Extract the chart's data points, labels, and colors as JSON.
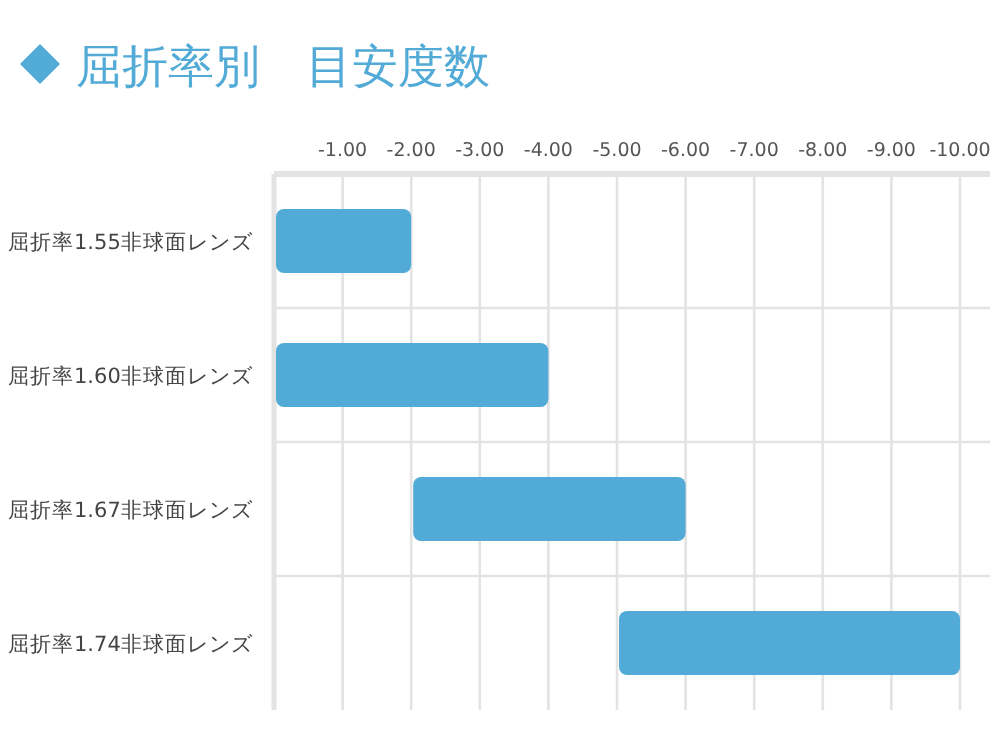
{
  "chart_data": {
    "type": "bar",
    "orientation": "horizontal",
    "title": "屈折率別　目安度数",
    "categories": [
      "屈折率1.55非球面レンズ",
      "屈折率1.60非球面レンズ",
      "屈折率1.67非球面レンズ",
      "屈折率1.74非球面レンズ"
    ],
    "base": [
      0,
      0,
      -2,
      -5
    ],
    "values": [
      -2,
      -4,
      -4,
      -5
    ],
    "color": "#52aad6",
    "xlim": [
      0,
      -10
    ],
    "xticks": [
      {
        "value": -1,
        "label": "-1.00"
      },
      {
        "value": -2,
        "label": "-2.00"
      },
      {
        "value": -3,
        "label": "-3.00"
      },
      {
        "value": -4,
        "label": "-4.00"
      },
      {
        "value": -5,
        "label": "-5.00"
      },
      {
        "value": -6,
        "label": "-6.00"
      },
      {
        "value": -7,
        "label": "-7.00"
      },
      {
        "value": -8,
        "label": "-8.00"
      },
      {
        "value": -9,
        "label": "-9.00"
      },
      {
        "value": -10,
        "label": "-10.00"
      }
    ],
    "grid": true
  }
}
